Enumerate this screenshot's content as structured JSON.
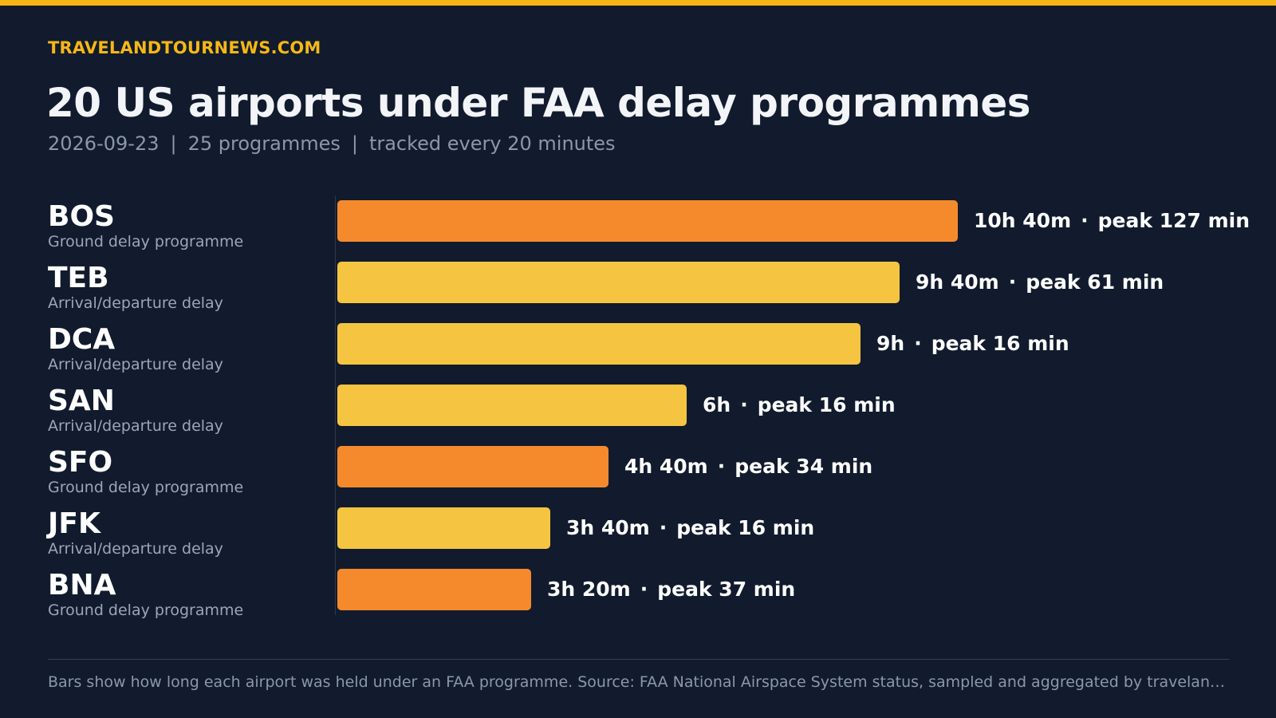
{
  "header": {
    "brand": "TRAVELANDTOURNEWS.COM",
    "title": "20 US airports under FAA delay programmes",
    "subtitle_date": "2026-09-23",
    "subtitle_count": "25 programmes",
    "subtitle_freq": "tracked every 20 minutes",
    "separator": "|"
  },
  "colors": {
    "ground_delay_programme": "#f58a2d",
    "arrival_departure_delay": "#f5c542",
    "accent": "#f6b716",
    "background": "#111b2d"
  },
  "chart_data": {
    "type": "bar",
    "orientation": "horizontal",
    "categories": [
      "BOS",
      "TEB",
      "DCA",
      "SAN",
      "SFO",
      "JFK",
      "BNA"
    ],
    "programme_types": [
      "Ground delay programme",
      "Arrival/departure delay",
      "Arrival/departure delay",
      "Arrival/departure delay",
      "Ground delay programme",
      "Arrival/departure delay",
      "Ground delay programme"
    ],
    "values_minutes": [
      640,
      580,
      540,
      360,
      280,
      220,
      200
    ],
    "duration_labels": [
      "10h 40m",
      "9h 40m",
      "9h",
      "6h",
      "4h 40m",
      "3h 40m",
      "3h 20m"
    ],
    "peak_labels": [
      "peak 127 min",
      "peak 61 min",
      "peak 16 min",
      "peak 16 min",
      "peak 34 min",
      "peak 16 min",
      "peak 37 min"
    ],
    "peak_minutes": [
      127,
      61,
      16,
      16,
      34,
      16,
      37
    ],
    "label_separator": "·",
    "grid": false,
    "legend": "none"
  },
  "footer": {
    "note": "Bars show how long each airport was held under an FAA programme. Source: FAA National Airspace System status, sampled and aggregated by travelandtournews.com"
  }
}
